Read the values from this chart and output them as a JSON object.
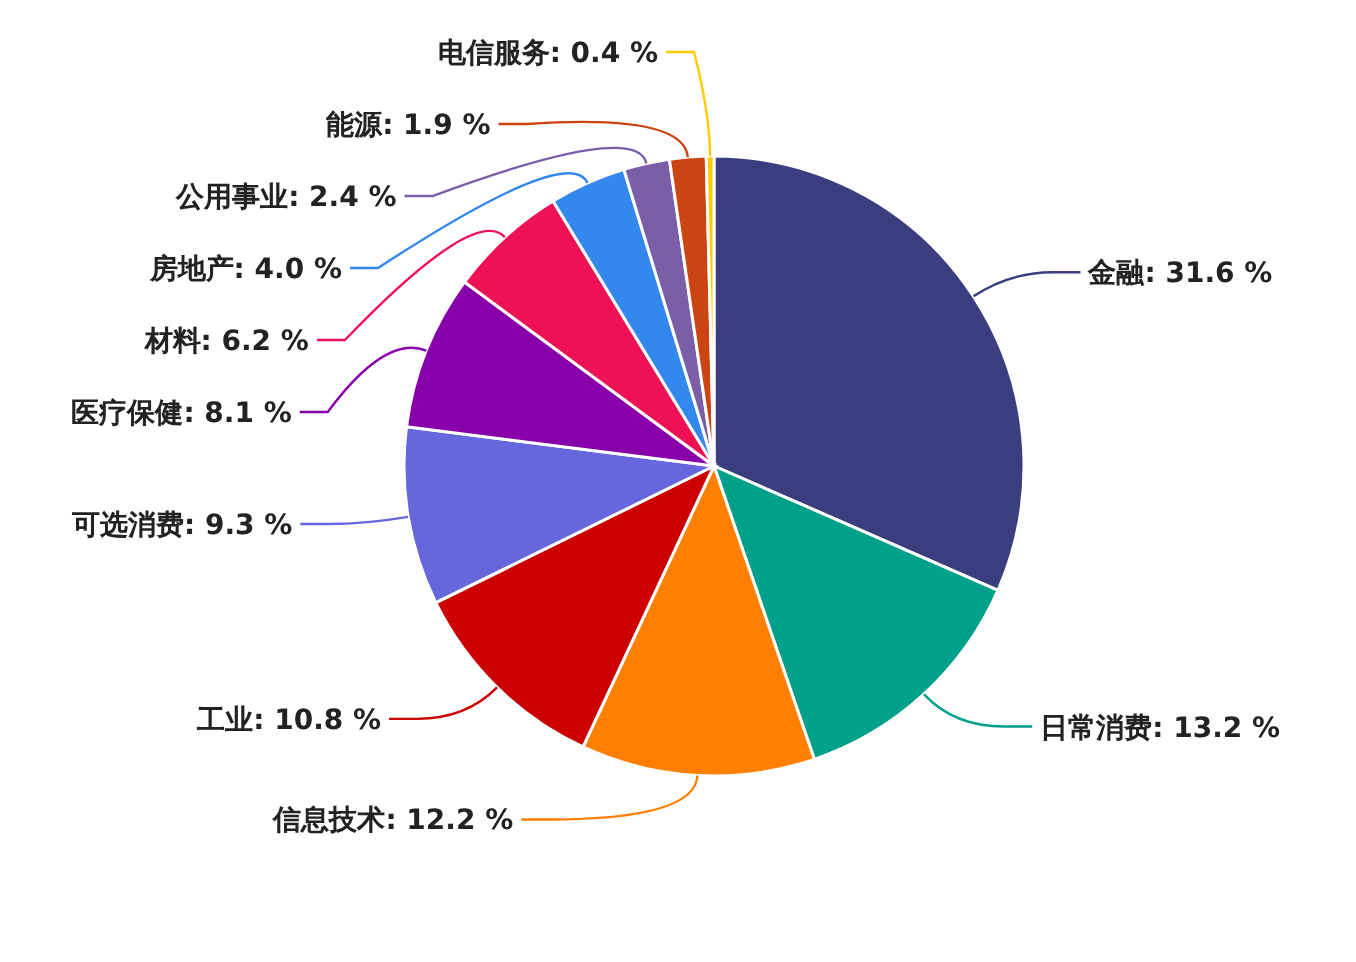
{
  "chart_data": {
    "type": "pie",
    "categories": [
      "金融",
      "日常消费",
      "信息技术",
      "工业",
      "可选消费",
      "医疗保健",
      "材料",
      "房地产",
      "公用事业",
      "能源",
      "电信服务"
    ],
    "values": [
      31.6,
      13.2,
      12.2,
      10.8,
      9.3,
      8.1,
      6.2,
      4.0,
      2.4,
      1.9,
      0.4
    ],
    "value_labels": [
      "31.6 %",
      "13.2 %",
      "12.2 %",
      "10.8 %",
      "9.3 %",
      "8.1 %",
      "6.2 %",
      "4.0 %",
      "2.4 %",
      "1.9 %",
      "0.4 %"
    ],
    "colors": [
      "#3a3d7e",
      "#00a08a",
      "#ff7f00",
      "#cc0000",
      "#6666dd",
      "#8800aa",
      "#ee1155",
      "#3388ee",
      "#7b5ea8",
      "#cc4411",
      "#ffcc00"
    ]
  }
}
